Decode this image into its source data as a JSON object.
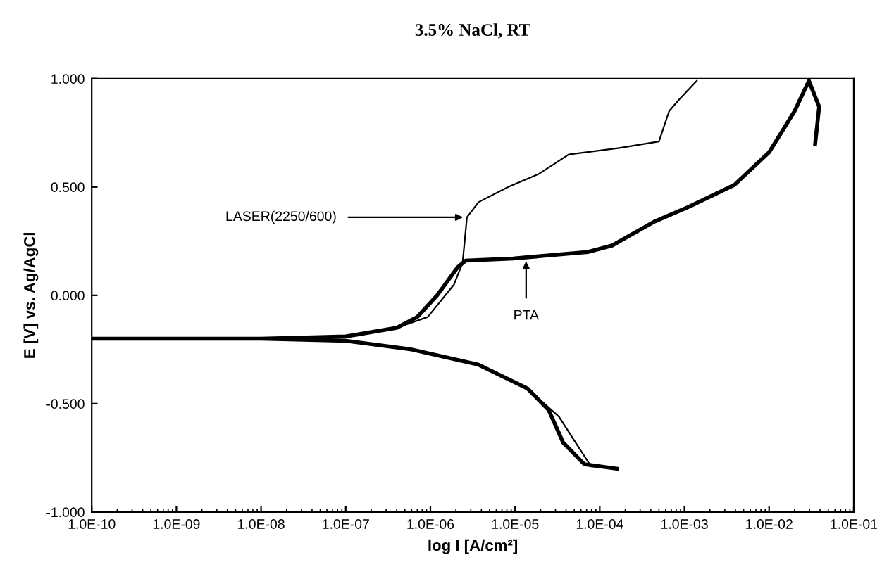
{
  "chart_data": {
    "type": "line",
    "title": "3.5% NaCl, RT",
    "xlabel": "log I [A/cm²]",
    "ylabel": "E [V] vs. Ag/AgCl",
    "log": "x",
    "grid": false,
    "marker": "none",
    "line_style": "solid",
    "xlim": [
      1e-10,
      0.1
    ],
    "ylim": [
      -1,
      1
    ],
    "xticks": [
      {
        "value": 1e-10,
        "label": "1.0E-10"
      },
      {
        "value": 1e-09,
        "label": "1.0E-09"
      },
      {
        "value": 1e-08,
        "label": "1.0E-08"
      },
      {
        "value": 1e-07,
        "label": "1.0E-07"
      },
      {
        "value": 1e-06,
        "label": "1.0E-06"
      },
      {
        "value": 1e-05,
        "label": "1.0E-05"
      },
      {
        "value": 0.0001,
        "label": "1.0E-04"
      },
      {
        "value": 0.001,
        "label": "1.0E-03"
      },
      {
        "value": 0.01,
        "label": "1.0E-02"
      },
      {
        "value": 0.1,
        "label": "1.0E-01"
      }
    ],
    "yticks": [
      {
        "value": -1,
        "label": "-1.000"
      },
      {
        "value": -0.5,
        "label": "-0.500"
      },
      {
        "value": 0,
        "label": "0.000"
      },
      {
        "value": 0.5,
        "label": "0.500"
      },
      {
        "value": 1,
        "label": "1.000"
      }
    ],
    "series": [
      {
        "color": "#000000",
        "x": [
          0.000126,
          7.9e-05,
          5.2e-05,
          3.3e-05,
          1.4e-05,
          3.7e-06,
          6e-07,
          1e-07,
          1e-08,
          1e-09,
          1e-10,
          1e-09,
          1e-08,
          1e-07,
          4e-07,
          9.3e-07,
          1.9e-06,
          2.4e-06,
          2.7e-06,
          3.7e-06,
          8.3e-06,
          1.9e-05,
          4.3e-05,
          0.00017,
          0.0005,
          0.00066,
          0.00085,
          0.0014
        ],
        "values": [
          -0.79,
          -0.79,
          -0.68,
          -0.56,
          -0.43,
          -0.32,
          -0.25,
          -0.21,
          -0.2,
          -0.2,
          -0.2,
          -0.2,
          -0.2,
          -0.19,
          -0.15,
          -0.1,
          0.05,
          0.15,
          0.36,
          0.43,
          0.5,
          0.56,
          0.65,
          0.68,
          0.71,
          0.85,
          0.9,
          0.99
        ]
      },
      {
        "color": "#000000",
        "x": [
          0.00016,
          6.6e-05,
          3.7e-05,
          2.5e-05,
          1.4e-05,
          3.7e-06,
          6e-07,
          1e-07,
          1e-08,
          1e-09,
          1e-10,
          1e-09,
          1e-08,
          1e-07,
          4e-07,
          7e-07,
          1.2e-06,
          2.1e-06,
          2.6e-06,
          9.5e-06,
          7.2e-05,
          0.00014,
          0.00044,
          0.00115,
          0.0039,
          0.01,
          0.02,
          0.0295,
          0.039,
          0.035
        ],
        "values": [
          -0.8,
          -0.78,
          -0.68,
          -0.53,
          -0.43,
          -0.32,
          -0.25,
          -0.21,
          -0.2,
          -0.2,
          -0.2,
          -0.2,
          -0.2,
          -0.19,
          -0.15,
          -0.1,
          0.0,
          0.13,
          0.16,
          0.17,
          0.2,
          0.23,
          0.34,
          0.41,
          0.51,
          0.66,
          0.85,
          0.99,
          0.87,
          0.7
        ]
      }
    ],
    "annotations": [
      {
        "text": "LASER(2250/600)",
        "x": 2.7e-06,
        "y": 0.36
      },
      {
        "text": "PTA",
        "x": 1.35e-05,
        "y": 0.175
      }
    ]
  }
}
